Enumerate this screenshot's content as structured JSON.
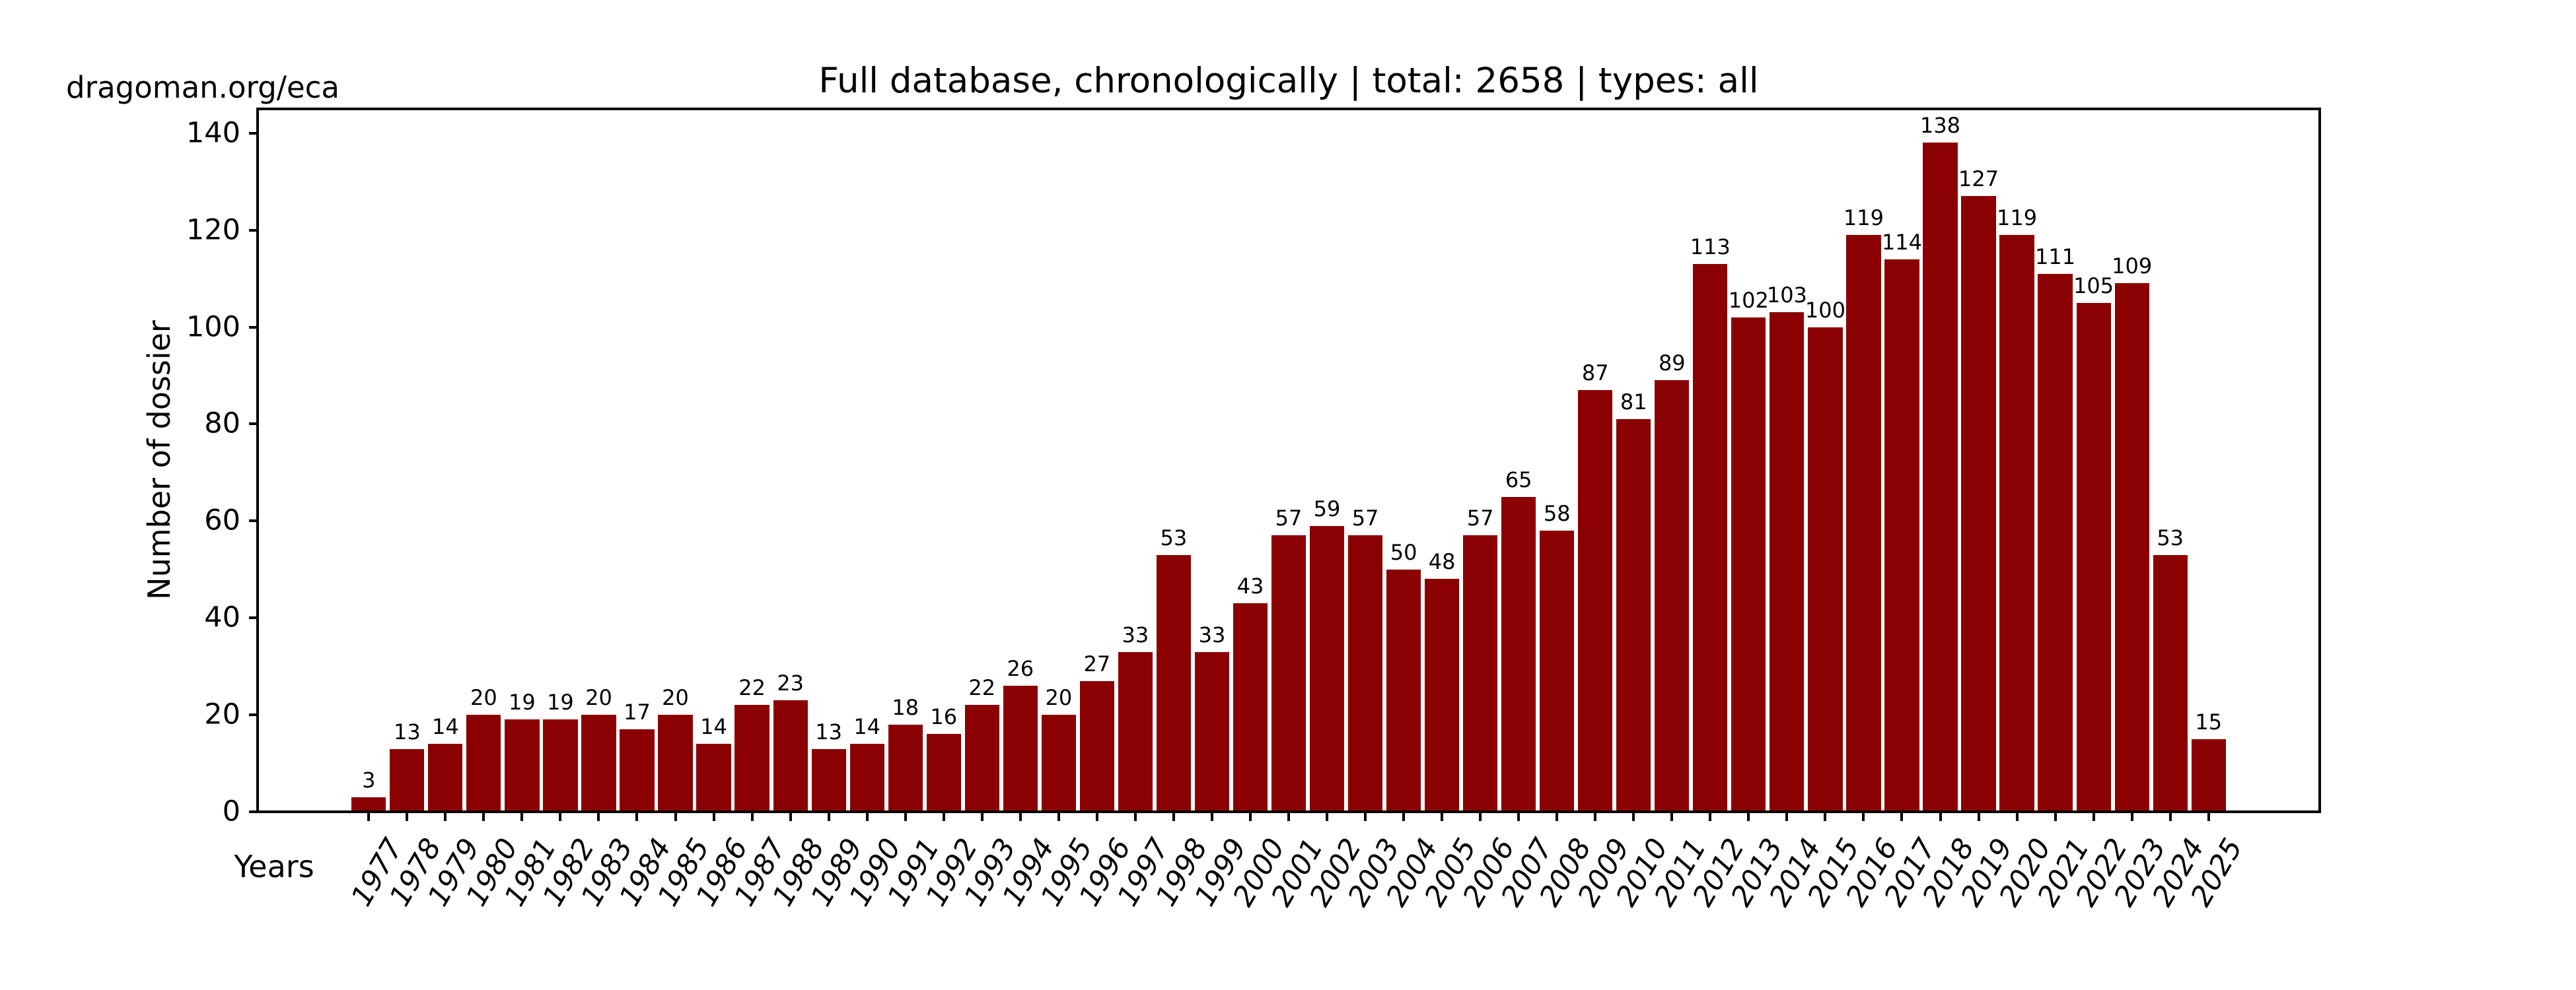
{
  "branding": "dragoman.org/eca",
  "chart_data": {
    "type": "bar",
    "title": "Full database, chronologically | total: 2658 | types: all",
    "xlabel": "Years",
    "ylabel": "Number of dossier",
    "total": 2658,
    "categories": [
      "1977",
      "1978",
      "1979",
      "1980",
      "1981",
      "1982",
      "1983",
      "1984",
      "1985",
      "1986",
      "1987",
      "1988",
      "1989",
      "1990",
      "1991",
      "1992",
      "1993",
      "1994",
      "1995",
      "1996",
      "1997",
      "1998",
      "1999",
      "2000",
      "2001",
      "2002",
      "2003",
      "2004",
      "2005",
      "2006",
      "2007",
      "2008",
      "2009",
      "2010",
      "2011",
      "2012",
      "2013",
      "2014",
      "2015",
      "2016",
      "2017",
      "2018",
      "2019",
      "2020",
      "2021",
      "2022",
      "2023",
      "2024",
      "2025"
    ],
    "values": [
      3,
      13,
      14,
      20,
      19,
      19,
      20,
      17,
      20,
      14,
      22,
      23,
      13,
      14,
      18,
      16,
      22,
      26,
      20,
      27,
      33,
      53,
      33,
      43,
      57,
      59,
      57,
      50,
      48,
      57,
      65,
      58,
      87,
      81,
      89,
      113,
      102,
      103,
      100,
      119,
      114,
      138,
      127,
      119,
      111,
      105,
      109,
      53,
      15
    ],
    "yticks": [
      0,
      20,
      40,
      60,
      80,
      100,
      120,
      140
    ],
    "ylim": [
      0,
      145
    ],
    "bar_color": "#8B0000",
    "text_color": "#000000",
    "background_color": "#ffffff",
    "grid": false,
    "legend": null,
    "bar_value_labels": true,
    "xtick_rotation_deg": 60,
    "xtick_style": "italic"
  }
}
